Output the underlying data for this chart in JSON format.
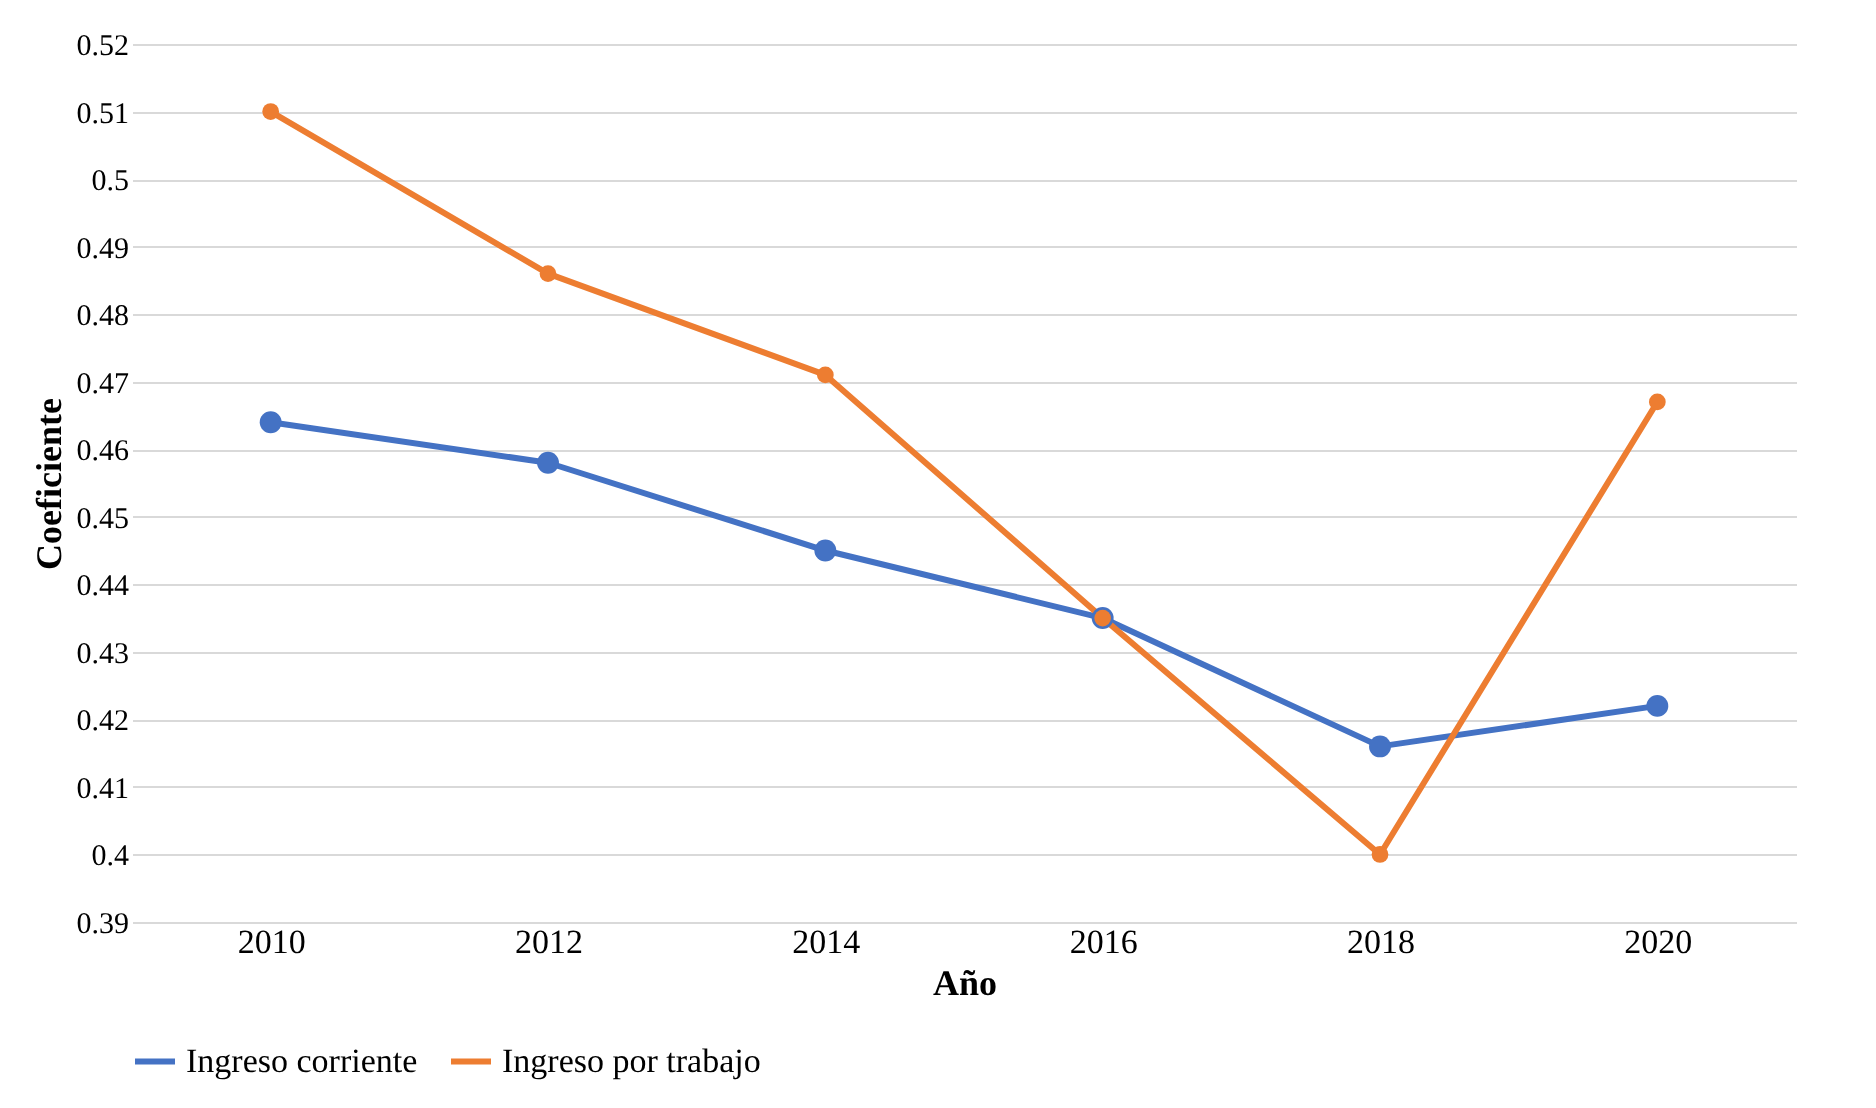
{
  "chart_data": {
    "type": "line",
    "xlabel": "Año",
    "ylabel": "Coeficiente",
    "categories": [
      "2010",
      "2012",
      "2014",
      "2016",
      "2018",
      "2020"
    ],
    "series": [
      {
        "name": "Ingreso corriente",
        "color": "#4472c4",
        "values": [
          0.464,
          0.458,
          0.445,
          0.435,
          0.416,
          0.422
        ]
      },
      {
        "name": "Ingreso por trabajo",
        "color": "#ed7d31",
        "values": [
          0.51,
          0.486,
          0.471,
          0.435,
          0.4,
          0.467
        ]
      }
    ],
    "ylim": [
      0.39,
      0.52
    ],
    "yticks": [
      0.39,
      0.4,
      0.41,
      0.42,
      0.43,
      0.44,
      0.45,
      0.46,
      0.47,
      0.48,
      0.49,
      0.5,
      0.51,
      0.52
    ],
    "grid": "y",
    "legend": "bottom",
    "marker": "circle",
    "line_style": "solid"
  }
}
